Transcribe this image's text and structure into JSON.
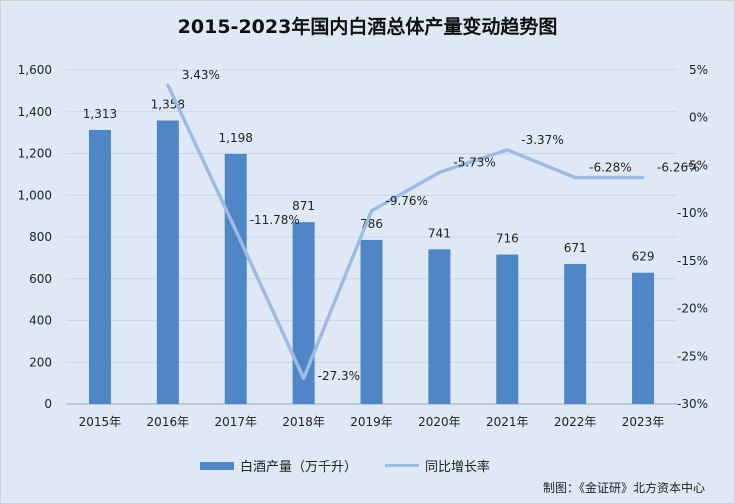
{
  "chart_data": {
    "type": "bar",
    "title": "2015-2023年国内白酒总体产量变动趋势图",
    "categories": [
      "2015年",
      "2016年",
      "2017年",
      "2018年",
      "2019年",
      "2020年",
      "2021年",
      "2022年",
      "2023年"
    ],
    "series": [
      {
        "name": "白酒产量（万千升）",
        "type": "bar",
        "axis": "left",
        "color": "#4f86c6",
        "values": [
          1313,
          1358,
          1198,
          871,
          786,
          741,
          716,
          671,
          629
        ],
        "labels": [
          "1,313",
          "1,358",
          "1,198",
          "871",
          "786",
          "741",
          "716",
          "671",
          "629"
        ]
      },
      {
        "name": "同比增长率",
        "type": "line",
        "axis": "right",
        "color": "#9dbbe3",
        "x": [
          "2016年",
          "2017年",
          "2018年",
          "2019年",
          "2020年",
          "2021年",
          "2022年",
          "2023年"
        ],
        "values": [
          3.43,
          -11.78,
          -27.3,
          -9.76,
          -5.73,
          -3.37,
          -6.28,
          -6.26
        ],
        "labels": [
          "3.43%",
          "-11.78%",
          "-27.3%",
          "-9.76%",
          "-5.73%",
          "-3.37%",
          "-6.28%",
          "-6.26%"
        ]
      }
    ],
    "y_left": {
      "ylim": [
        0,
        1600
      ],
      "ticks": [
        0,
        200,
        400,
        600,
        800,
        1000,
        1200,
        1400,
        1600
      ],
      "tick_labels": [
        "0",
        "200",
        "400",
        "600",
        "800",
        "1,000",
        "1,200",
        "1,400",
        "1,600"
      ]
    },
    "y_right": {
      "ylim": [
        -30,
        5
      ],
      "ticks": [
        5,
        0,
        -5,
        -10,
        -15,
        -20,
        -25,
        -30
      ],
      "tick_labels": [
        "5%",
        "0%",
        "-5%",
        "-10%",
        "-15%",
        "-20%",
        "-25%",
        "-30%"
      ]
    },
    "grid": true,
    "legend": "bottom"
  },
  "legend": {
    "bar_label": "白酒产量（万千升）",
    "line_label": "同比增长率"
  },
  "source_note": "制图：《金证研》北方资本中心"
}
